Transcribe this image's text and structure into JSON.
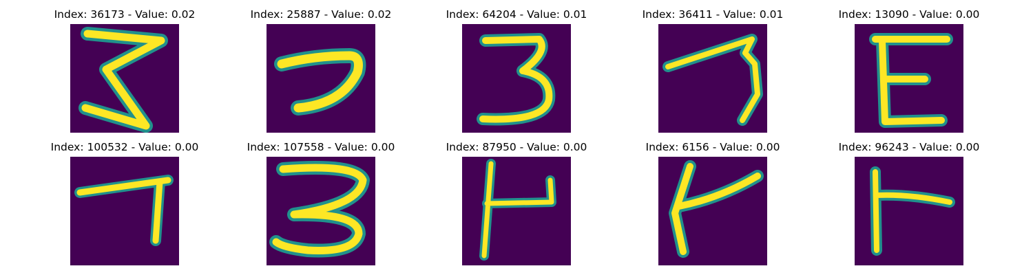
{
  "colors": {
    "background": "#440154",
    "stroke_mid": "#21918c",
    "stroke_core": "#fde725"
  },
  "panels": [
    {
      "title": "Index: 36173 - Value: 0.02",
      "glyph": "z-three"
    },
    {
      "title": "Index: 25887 - Value: 0.02",
      "glyph": "seven-curve"
    },
    {
      "title": "Index: 64204 - Value: 0.01",
      "glyph": "three"
    },
    {
      "title": "Index: 36411 - Value: 0.01",
      "glyph": "seven"
    },
    {
      "title": "Index: 13090 - Value: 0.00",
      "glyph": "e-letter"
    },
    {
      "title": "Index: 100532 - Value: 0.00",
      "glyph": "seven-short"
    },
    {
      "title": "Index: 107558 - Value: 0.00",
      "glyph": "three-round"
    },
    {
      "title": "Index: 87950 - Value: 0.00",
      "glyph": "h-hook"
    },
    {
      "title": "Index: 6156 - Value: 0.00",
      "glyph": "k-letter"
    },
    {
      "title": "Index: 96243 - Value: 0.00",
      "glyph": "t-sideways"
    }
  ]
}
